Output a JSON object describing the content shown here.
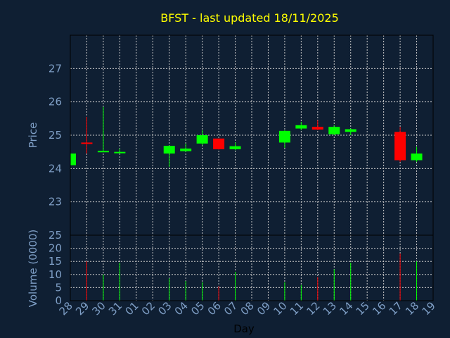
{
  "chart_data": [
    {
      "type": "candlestick",
      "title": "BFST - last updated 18/11/2025",
      "ylabel": "Price",
      "ylim": [
        22,
        28
      ],
      "yticks": [
        23,
        24,
        25,
        26,
        27
      ],
      "grid": true,
      "categories": [
        "28",
        "29",
        "30",
        "31",
        "01",
        "02",
        "03",
        "04",
        "05",
        "06",
        "07",
        "08",
        "09",
        "10",
        "11",
        "12",
        "13",
        "14",
        "15",
        "16",
        "17",
        "18",
        "19"
      ],
      "candles": [
        {
          "day": "28",
          "open": 24.1,
          "high": 24.45,
          "low": 24.05,
          "close": 24.45,
          "dir": "up"
        },
        {
          "day": "29",
          "open": 24.78,
          "high": 25.55,
          "low": 24.45,
          "close": 24.75,
          "dir": "down"
        },
        {
          "day": "30",
          "open": 24.5,
          "high": 25.85,
          "low": 24.5,
          "close": 24.53,
          "dir": "up"
        },
        {
          "day": "31",
          "open": 24.48,
          "high": 24.6,
          "low": 24.45,
          "close": 24.5,
          "dir": "up"
        },
        {
          "day": "03",
          "open": 24.45,
          "high": 24.7,
          "low": 24.05,
          "close": 24.68,
          "dir": "up"
        },
        {
          "day": "04",
          "open": 24.52,
          "high": 24.75,
          "low": 24.5,
          "close": 24.6,
          "dir": "up"
        },
        {
          "day": "05",
          "open": 24.75,
          "high": 25.15,
          "low": 24.7,
          "close": 25.0,
          "dir": "up"
        },
        {
          "day": "06",
          "open": 24.9,
          "high": 24.9,
          "low": 24.57,
          "close": 24.58,
          "dir": "down"
        },
        {
          "day": "07",
          "open": 24.58,
          "high": 24.78,
          "low": 24.55,
          "close": 24.67,
          "dir": "up"
        },
        {
          "day": "10",
          "open": 24.78,
          "high": 25.15,
          "low": 24.62,
          "close": 25.13,
          "dir": "up"
        },
        {
          "day": "11",
          "open": 25.2,
          "high": 25.4,
          "low": 25.15,
          "close": 25.3,
          "dir": "up"
        },
        {
          "day": "12",
          "open": 25.25,
          "high": 25.45,
          "low": 25.15,
          "close": 25.17,
          "dir": "down"
        },
        {
          "day": "13",
          "open": 25.03,
          "high": 25.3,
          "low": 25.0,
          "close": 25.25,
          "dir": "up"
        },
        {
          "day": "14",
          "open": 25.1,
          "high": 25.2,
          "low": 25.0,
          "close": 25.18,
          "dir": "up"
        },
        {
          "day": "17",
          "open": 25.1,
          "high": 25.25,
          "low": 24.2,
          "close": 24.25,
          "dir": "down"
        },
        {
          "day": "18",
          "open": 24.25,
          "high": 24.65,
          "low": 24.2,
          "close": 24.45,
          "dir": "up"
        }
      ]
    },
    {
      "type": "bar",
      "ylabel": "Volume (0000)",
      "xlabel": "Day",
      "ylim": [
        0,
        25
      ],
      "yticks": [
        0,
        5,
        10,
        15,
        20,
        25
      ],
      "grid": true,
      "categories": [
        "28",
        "29",
        "30",
        "31",
        "01",
        "02",
        "03",
        "04",
        "05",
        "06",
        "07",
        "08",
        "09",
        "10",
        "11",
        "12",
        "13",
        "14",
        "15",
        "16",
        "17",
        "18",
        "19"
      ],
      "volumes": [
        {
          "day": "29",
          "value": 15,
          "dir": "down"
        },
        {
          "day": "30",
          "value": 10,
          "dir": "up"
        },
        {
          "day": "31",
          "value": 14.5,
          "dir": "up"
        },
        {
          "day": "03",
          "value": 8.5,
          "dir": "up"
        },
        {
          "day": "04",
          "value": 7.5,
          "dir": "up"
        },
        {
          "day": "05",
          "value": 7,
          "dir": "up"
        },
        {
          "day": "06",
          "value": 5.5,
          "dir": "down"
        },
        {
          "day": "07",
          "value": 11,
          "dir": "up"
        },
        {
          "day": "10",
          "value": 7,
          "dir": "up"
        },
        {
          "day": "11",
          "value": 6,
          "dir": "up"
        },
        {
          "day": "12",
          "value": 9,
          "dir": "down"
        },
        {
          "day": "13",
          "value": 12,
          "dir": "up"
        },
        {
          "day": "14",
          "value": 14.5,
          "dir": "up"
        },
        {
          "day": "17",
          "value": 18,
          "dir": "down"
        },
        {
          "day": "18",
          "value": 15,
          "dir": "up"
        }
      ]
    }
  ],
  "colors": {
    "background": "#0f1f33",
    "up": "#00ff00",
    "down": "#ff0000",
    "axis_text": "#7f9fc6",
    "title": "#ffff00",
    "grid": "#c8c8c8"
  }
}
